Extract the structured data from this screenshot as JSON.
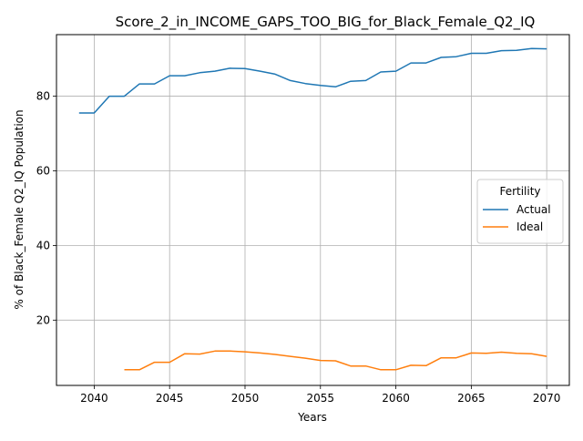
{
  "chart_data": {
    "type": "line",
    "title": "Score_2_in_INCOME_GAPS_TOO_BIG_for_Black_Female_Q2_IQ",
    "xlabel": "Years",
    "ylabel": "% of Black_Female Q2_IQ Population",
    "xlim": [
      2037.5,
      2071.5
    ],
    "ylim": [
      2.5,
      96.5
    ],
    "xticks": [
      2040,
      2045,
      2050,
      2055,
      2060,
      2065,
      2070
    ],
    "yticks": [
      20,
      40,
      60,
      80
    ],
    "grid": true,
    "legend": {
      "title": "Fertility",
      "placement": "center-right"
    },
    "series": [
      {
        "name": "Actual",
        "color": "#1f77b4",
        "x": [
          2039,
          2040,
          2041,
          2042,
          2043,
          2044,
          2045,
          2046,
          2047,
          2048,
          2049,
          2050,
          2051,
          2052,
          2053,
          2054,
          2055,
          2056,
          2057,
          2058,
          2059,
          2060,
          2061,
          2062,
          2063,
          2064,
          2065,
          2066,
          2067,
          2068,
          2069,
          2070
        ],
        "y": [
          75.5,
          75.5,
          80.0,
          80.0,
          83.3,
          83.3,
          85.5,
          85.5,
          86.3,
          86.7,
          87.5,
          87.4,
          86.7,
          85.9,
          84.2,
          83.4,
          82.9,
          82.5,
          84.0,
          84.2,
          86.5,
          86.7,
          88.9,
          88.9,
          90.4,
          90.6,
          91.5,
          91.5,
          92.2,
          92.3,
          92.8,
          92.7
        ]
      },
      {
        "name": "Ideal",
        "color": "#ff7f0e",
        "x": [
          2042,
          2043,
          2044,
          2045,
          2046,
          2047,
          2048,
          2049,
          2050,
          2051,
          2052,
          2053,
          2054,
          2055,
          2056,
          2057,
          2058,
          2059,
          2060,
          2061,
          2062,
          2063,
          2064,
          2065,
          2066,
          2067,
          2068,
          2069,
          2070
        ],
        "y": [
          6.7,
          6.7,
          8.7,
          8.7,
          11.0,
          10.9,
          11.7,
          11.7,
          11.5,
          11.2,
          10.8,
          10.3,
          9.8,
          9.2,
          9.1,
          7.7,
          7.7,
          6.7,
          6.7,
          7.9,
          7.8,
          9.9,
          9.9,
          11.2,
          11.1,
          11.4,
          11.1,
          11.0,
          10.3
        ]
      }
    ]
  }
}
